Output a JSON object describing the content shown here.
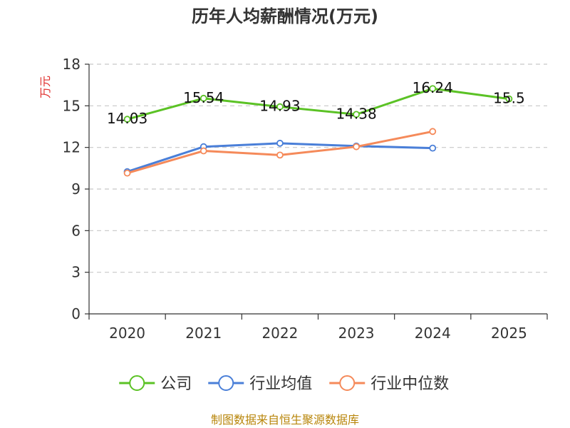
{
  "chart_data": {
    "type": "line",
    "title": "历年人均薪酬情况(万元)",
    "ylabel": "万元",
    "xlabel": "",
    "categories": [
      "2020",
      "2021",
      "2022",
      "2023",
      "2024",
      "2025"
    ],
    "ylim": [
      0,
      18
    ],
    "yticks": [
      0,
      3,
      6,
      9,
      12,
      15,
      18
    ],
    "grid": true,
    "legend_position": "bottom",
    "series": [
      {
        "name": "公司",
        "color": "#5bc225",
        "values": [
          14.03,
          15.54,
          14.93,
          14.38,
          16.24,
          15.5
        ],
        "labels": [
          "14.03",
          "15.54",
          "14.93",
          "14.38",
          "16.24",
          "15.5"
        ]
      },
      {
        "name": "行业均值",
        "color": "#4a7fd8",
        "values": [
          10.25,
          12.05,
          12.3,
          12.1,
          11.95,
          null
        ]
      },
      {
        "name": "行业中位数",
        "color": "#f58a5a",
        "values": [
          10.15,
          11.75,
          11.45,
          12.05,
          13.15,
          null
        ]
      }
    ],
    "source": "制图数据来自恒生聚源数据库"
  }
}
